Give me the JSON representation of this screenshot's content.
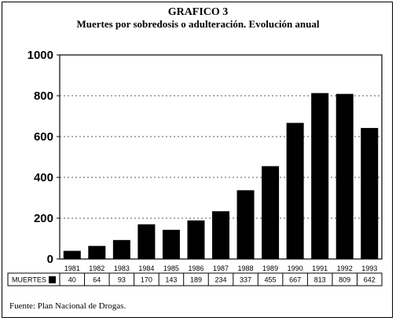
{
  "header": {
    "title": "GRAFICO 3",
    "subtitle": "Muertes por sobredosis o adulteración. Evolución anual"
  },
  "source": "Fuente: Plan Nacional de Drogas.",
  "chart_data": {
    "type": "bar",
    "categories": [
      "1981",
      "1982",
      "1983",
      "1984",
      "1985",
      "1986",
      "1987",
      "1988",
      "1989",
      "1990",
      "1991",
      "1992",
      "1993"
    ],
    "series": [
      {
        "name": "MUERTES",
        "values": [
          40,
          64,
          93,
          170,
          143,
          189,
          234,
          337,
          455,
          667,
          813,
          809,
          642
        ],
        "labels": [
          "40",
          "64",
          "93",
          "170",
          "143",
          "189",
          "234",
          "337",
          "455",
          "667",
          "813",
          "809",
          "642"
        ]
      }
    ],
    "ylim": [
      0,
      1000
    ],
    "yticks": [
      "0",
      "200",
      "400",
      "600",
      "800",
      "1000"
    ],
    "grid": true,
    "bar_color": "#000000",
    "grid_color": "#555555"
  }
}
